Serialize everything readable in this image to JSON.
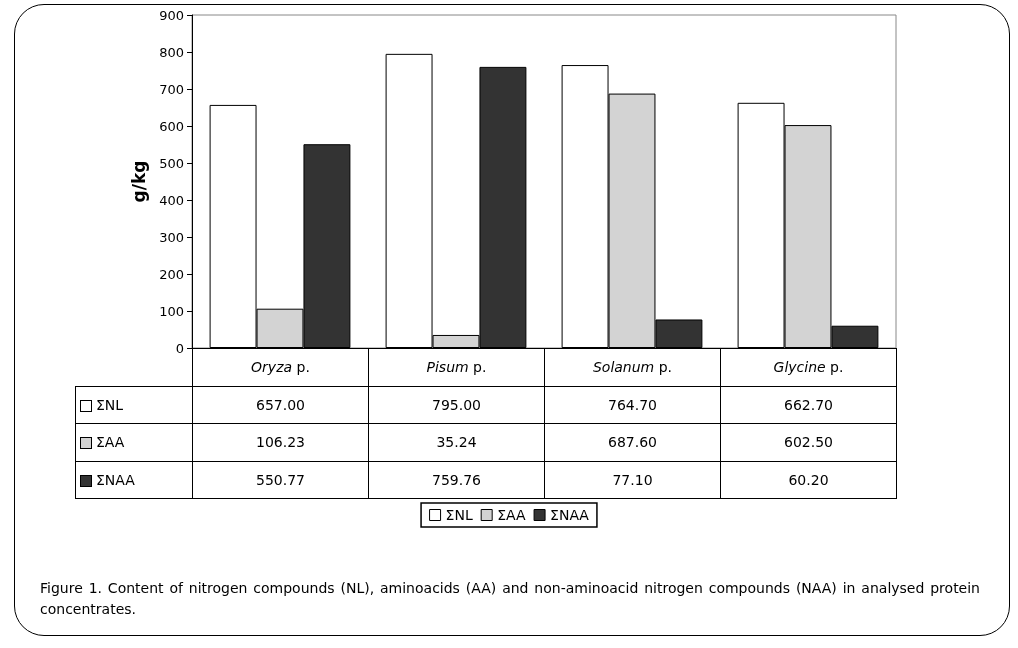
{
  "chart_data": {
    "type": "bar",
    "ylabel": "g/kg",
    "categories": [
      "Oryza p.",
      "Pisum p.",
      "Solanum p.",
      "Glycine p."
    ],
    "series": [
      {
        "name": "ΣNL",
        "color": "#ffffff",
        "values": [
          657.0,
          795.0,
          764.7,
          662.7
        ],
        "value_labels": [
          "657.00",
          "795.00",
          "764.70",
          "662.70"
        ]
      },
      {
        "name": "ΣAA",
        "color": "#d3d3d3",
        "values": [
          106.23,
          35.24,
          687.6,
          602.5
        ],
        "value_labels": [
          "106.23",
          "35.24",
          "687.60",
          "602.50"
        ]
      },
      {
        "name": "ΣNAA",
        "color": "#333333",
        "values": [
          550.77,
          759.76,
          77.1,
          60.2
        ],
        "value_labels": [
          "550.77",
          "759.76",
          "77.10",
          "60.20"
        ]
      }
    ],
    "ylim": [
      0,
      900
    ],
    "yticks": [
      0,
      100,
      200,
      300,
      400,
      500,
      600,
      700,
      800,
      900
    ],
    "grid": false,
    "legend": "bottom",
    "annotations": [
      "Figure 1. Content of nitrogen compounds (NL), aminoacids (AA) and non-aminoacid nitrogen compounds (NAA) in analysed protein concentrates."
    ]
  }
}
